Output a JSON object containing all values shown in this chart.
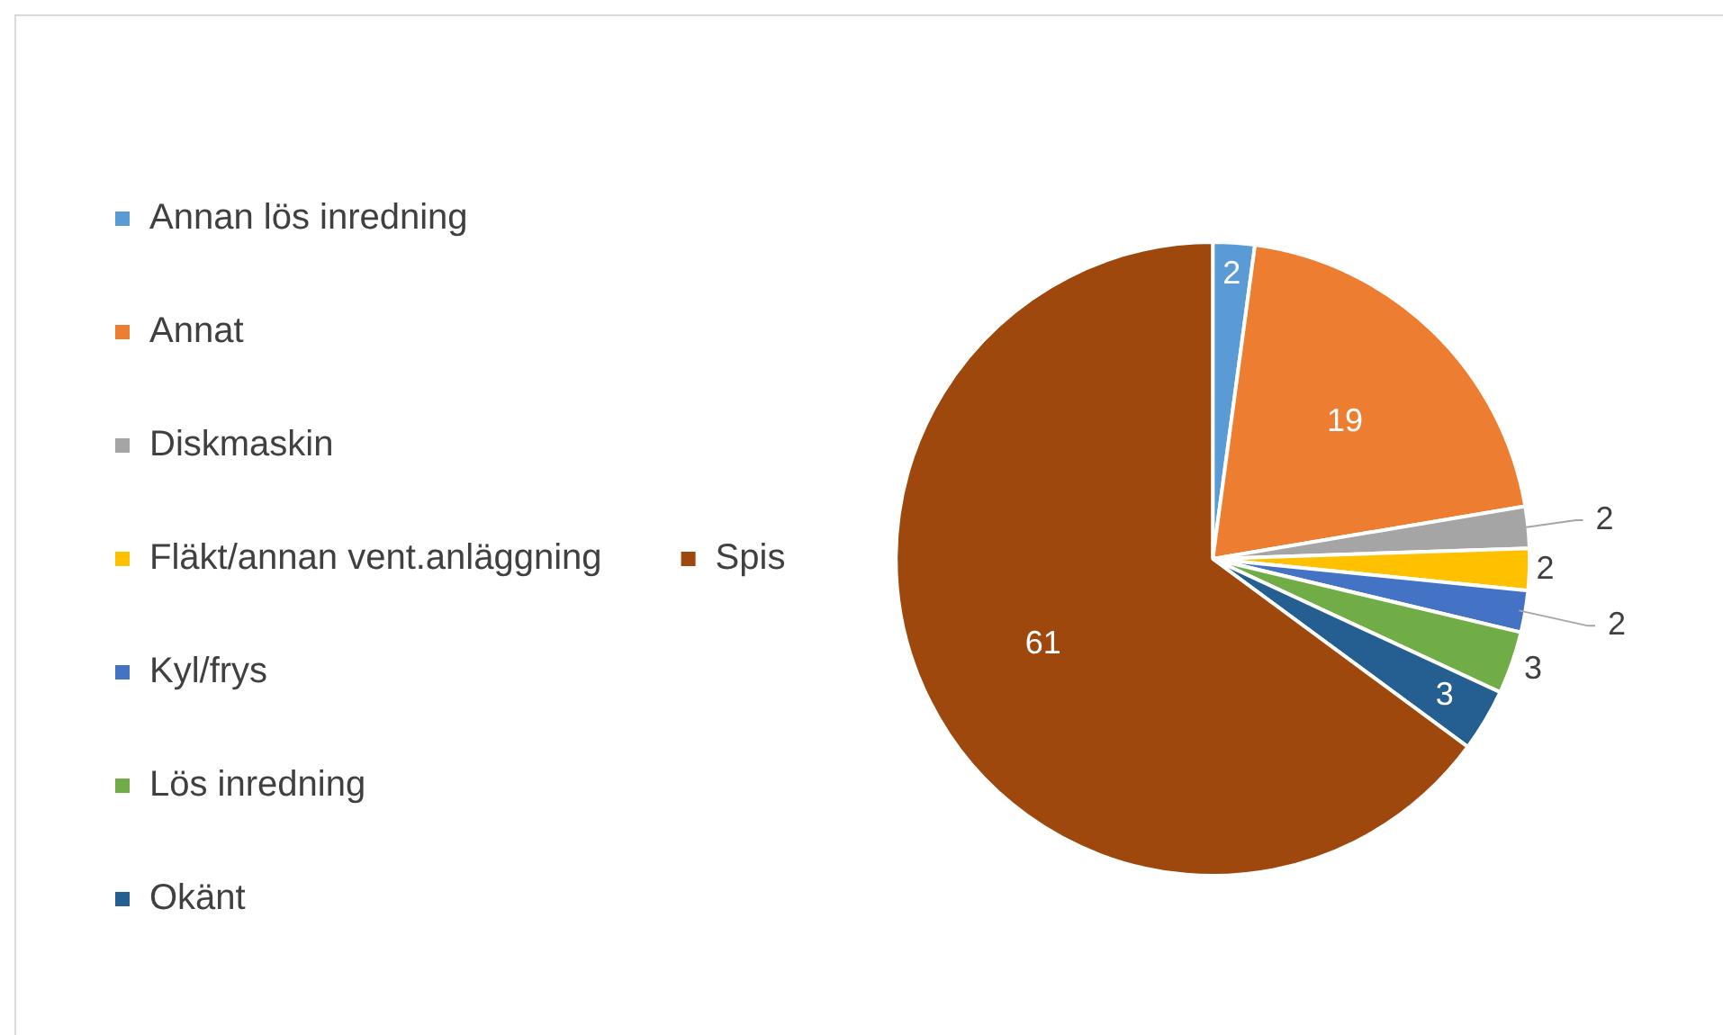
{
  "chart_data": {
    "type": "pie",
    "categories": [
      "Annan lös inredning",
      "Annat",
      "Diskmaskin",
      "Fläkt/annan vent.anläggning",
      "Kyl/frys",
      "Lös inredning",
      "Okänt",
      "Spis"
    ],
    "values": [
      2,
      19,
      2,
      2,
      2,
      3,
      3,
      61
    ],
    "colors": [
      "#5b9bd5",
      "#ed7d31",
      "#a5a5a5",
      "#ffc000",
      "#4472c4",
      "#70ad47",
      "#255e91",
      "#9e480e"
    ],
    "data_labels": true,
    "legend": "left"
  }
}
